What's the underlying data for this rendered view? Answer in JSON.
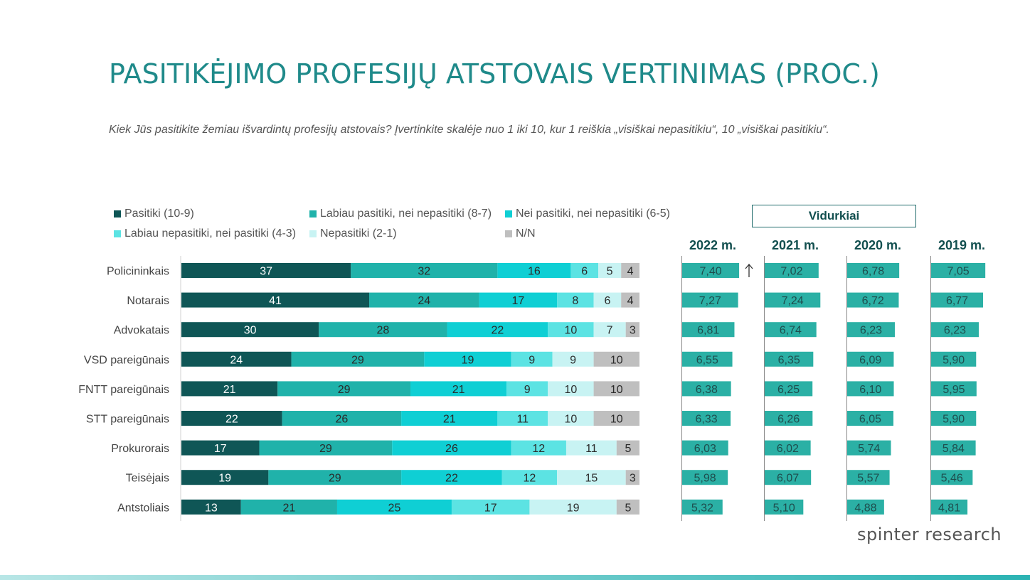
{
  "title": "PASITIKĖJIMO PROFESIJŲ ATSTOVAIS VERTINIMAS (PROC.)",
  "subtitle": "Kiek Jūs pasitikite žemiau išvardintų profesijų atstovais? Įvertinkite skalėje nuo 1 iki 10, kur 1 reiškia „visiškai nepasitikiu“, 10 „visiškai pasitikiu“.",
  "averages_label": "Vidurkiai",
  "brand": "spinter research",
  "colors": {
    "title": "#1f8a8a",
    "series": [
      "#0f5656",
      "#20b2aa",
      "#0fcfd4",
      "#5ce3e3",
      "#c8f3f3",
      "#bfbfbf"
    ],
    "avg_bar": "#2bb0a5"
  },
  "chart_data": [
    {
      "type": "bar",
      "orientation": "horizontal",
      "stacked": true,
      "unit": "percent",
      "legend_position": "top",
      "categories": [
        "Policininkais",
        "Notarais",
        "Advokatais",
        "VSD pareigūnais",
        "FNTT pareigūnais",
        "STT pareigūnais",
        "Prokurorais",
        "Teisėjais",
        "Antstoliais"
      ],
      "series": [
        {
          "name": "Pasitiki (10-9)",
          "values": [
            37,
            41,
            30,
            24,
            21,
            22,
            17,
            19,
            13
          ]
        },
        {
          "name": "Labiau pasitiki, nei nepasitiki (8-7)",
          "values": [
            32,
            24,
            28,
            29,
            29,
            26,
            29,
            29,
            21
          ]
        },
        {
          "name": "Nei pasitiki, nei nepasitiki (6-5)",
          "values": [
            16,
            17,
            22,
            19,
            21,
            21,
            26,
            22,
            25
          ]
        },
        {
          "name": "Labiau nepasitiki, nei pasitiki (4-3)",
          "values": [
            6,
            8,
            10,
            9,
            9,
            11,
            12,
            12,
            17
          ]
        },
        {
          "name": "Nepasitiki (2-1)",
          "values": [
            5,
            6,
            7,
            9,
            10,
            10,
            11,
            15,
            19
          ]
        },
        {
          "name": "N/N",
          "values": [
            4,
            4,
            3,
            10,
            10,
            10,
            5,
            3,
            5
          ]
        }
      ]
    },
    {
      "type": "bar",
      "orientation": "horizontal",
      "title": "Vidurkiai",
      "categories": [
        "Policininkais",
        "Notarais",
        "Advokatais",
        "VSD pareigūnais",
        "FNTT pareigūnais",
        "STT pareigūnais",
        "Prokurorais",
        "Teisėjais",
        "Antstoliais"
      ],
      "series": [
        {
          "name": "2022 m.",
          "labels": [
            "7,40",
            "7,27",
            "6,81",
            "6,55",
            "6,38",
            "6,33",
            "6,03",
            "5,98",
            "5,32"
          ],
          "values": [
            7.4,
            7.27,
            6.81,
            6.55,
            6.38,
            6.33,
            6.03,
            5.98,
            5.32
          ]
        },
        {
          "name": "2021 m.",
          "labels": [
            "7,02",
            "7,24",
            "6,74",
            "6,35",
            "6,25",
            "6,26",
            "6,02",
            "6,07",
            "5,10"
          ],
          "values": [
            7.02,
            7.24,
            6.74,
            6.35,
            6.25,
            6.26,
            6.02,
            6.07,
            5.1
          ]
        },
        {
          "name": "2020 m.",
          "labels": [
            "6,78",
            "6,72",
            "6,23",
            "6,09",
            "6,10",
            "6,05",
            "5,74",
            "5,57",
            "4,88"
          ],
          "values": [
            6.78,
            6.72,
            6.23,
            6.09,
            6.1,
            6.05,
            5.74,
            5.57,
            4.88
          ]
        },
        {
          "name": "2019 m.",
          "labels": [
            "7,05",
            "6,77",
            "6,23",
            "5,90",
            "5,95",
            "5,90",
            "5,84",
            "5,46",
            "4,81"
          ],
          "values": [
            7.05,
            6.77,
            6.23,
            5.9,
            5.95,
            5.9,
            5.84,
            5.46,
            4.81
          ]
        }
      ],
      "annotations": [
        {
          "category": "Policininkais",
          "series": "2022 m.",
          "marker": "arrow-up-icon"
        }
      ]
    }
  ]
}
